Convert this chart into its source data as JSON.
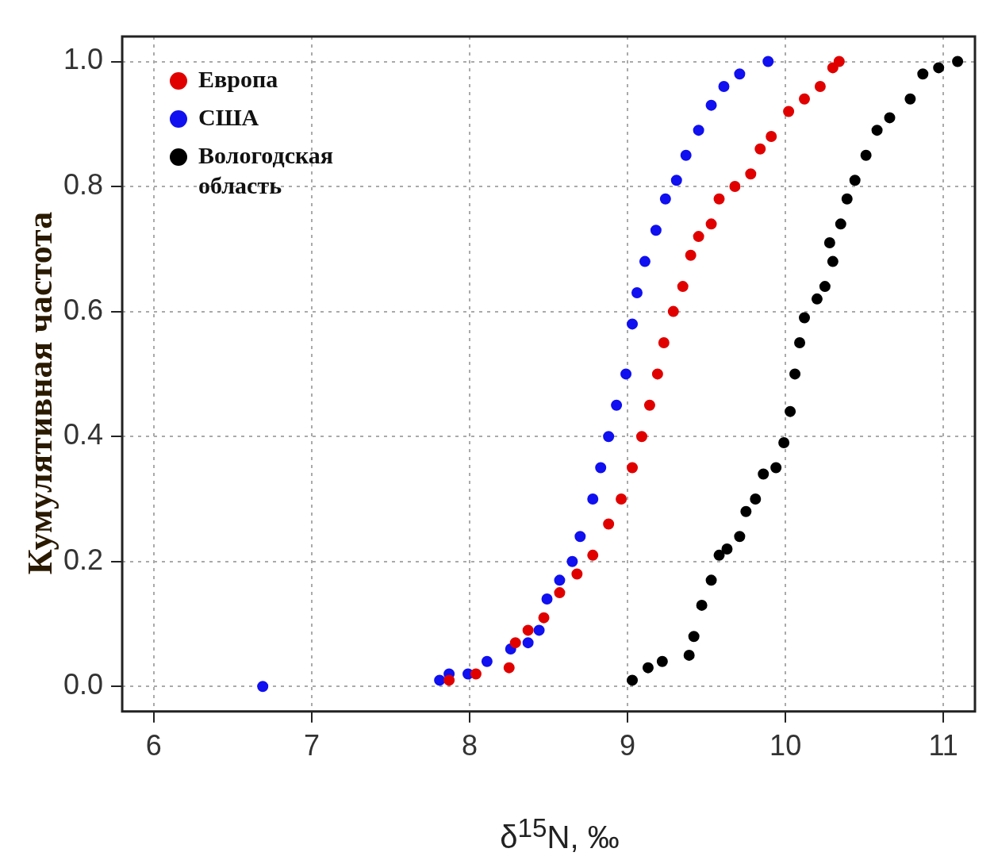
{
  "chart_data": {
    "type": "scatter",
    "xlabel": "δ$^{15}$N, ‰",
    "ylabel": "Кумулятивная частота",
    "xlim": [
      5.8,
      11.2
    ],
    "xticks": [
      6,
      7,
      8,
      9,
      10,
      11
    ],
    "ylim": [
      -0.04,
      1.04
    ],
    "yticks": [
      {
        "value": 0,
        "label": "0.0"
      },
      {
        "value": 0.2,
        "label": "0.2"
      },
      {
        "value": 0.4,
        "label": "0.4"
      },
      {
        "value": 0.6,
        "label": "0.6"
      },
      {
        "value": 0.8,
        "label": "0.8"
      },
      {
        "value": 1,
        "label": "1.0"
      }
    ],
    "grid": true,
    "legend": "top left",
    "marker": "circle",
    "series": [
      {
        "name": "Европа",
        "color": "#e00000",
        "x": [
          7.87,
          8.04,
          8.25,
          8.29,
          8.37,
          8.47,
          8.57,
          8.68,
          8.78,
          8.88,
          8.96,
          9.03,
          9.09,
          9.14,
          9.19,
          9.23,
          9.29,
          9.35,
          9.4,
          9.45,
          9.53,
          9.58,
          9.68,
          9.78,
          9.84,
          9.91,
          10.02,
          10.12,
          10.22,
          10.3,
          10.34
        ],
        "values": [
          0.01,
          0.02,
          0.03,
          0.07,
          0.09,
          0.11,
          0.15,
          0.18,
          0.21,
          0.26,
          0.3,
          0.35,
          0.4,
          0.45,
          0.5,
          0.55,
          0.6,
          0.64,
          0.69,
          0.72,
          0.74,
          0.78,
          0.8,
          0.82,
          0.86,
          0.88,
          0.92,
          0.94,
          0.96,
          0.99,
          1.0
        ]
      },
      {
        "name": "США",
        "color": "#1010f0",
        "x": [
          6.69,
          7.81,
          7.87,
          7.99,
          8.11,
          8.26,
          8.37,
          8.44,
          8.49,
          8.57,
          8.65,
          8.7,
          8.78,
          8.83,
          8.88,
          8.93,
          8.99,
          9.03,
          9.06,
          9.11,
          9.18,
          9.24,
          9.31,
          9.37,
          9.45,
          9.53,
          9.61,
          9.71,
          9.89
        ],
        "values": [
          0.0,
          0.01,
          0.02,
          0.02,
          0.04,
          0.06,
          0.07,
          0.09,
          0.14,
          0.17,
          0.2,
          0.24,
          0.3,
          0.35,
          0.4,
          0.45,
          0.5,
          0.58,
          0.63,
          0.68,
          0.73,
          0.78,
          0.81,
          0.85,
          0.89,
          0.93,
          0.96,
          0.98,
          1.0
        ]
      },
      {
        "name": "Вологодская область",
        "color": "#000000",
        "x": [
          9.03,
          9.13,
          9.22,
          9.39,
          9.42,
          9.47,
          9.53,
          9.58,
          9.63,
          9.71,
          9.75,
          9.81,
          9.86,
          9.94,
          9.99,
          10.03,
          10.06,
          10.09,
          10.12,
          10.2,
          10.25,
          10.3,
          10.28,
          10.35,
          10.39,
          10.44,
          10.51,
          10.58,
          10.66,
          10.79,
          10.87,
          10.97,
          11.09
        ],
        "values": [
          0.01,
          0.03,
          0.04,
          0.05,
          0.08,
          0.13,
          0.17,
          0.21,
          0.22,
          0.24,
          0.28,
          0.3,
          0.34,
          0.35,
          0.39,
          0.44,
          0.5,
          0.55,
          0.59,
          0.62,
          0.64,
          0.68,
          0.71,
          0.74,
          0.78,
          0.81,
          0.85,
          0.89,
          0.91,
          0.94,
          0.98,
          0.99,
          1.0
        ]
      }
    ]
  }
}
